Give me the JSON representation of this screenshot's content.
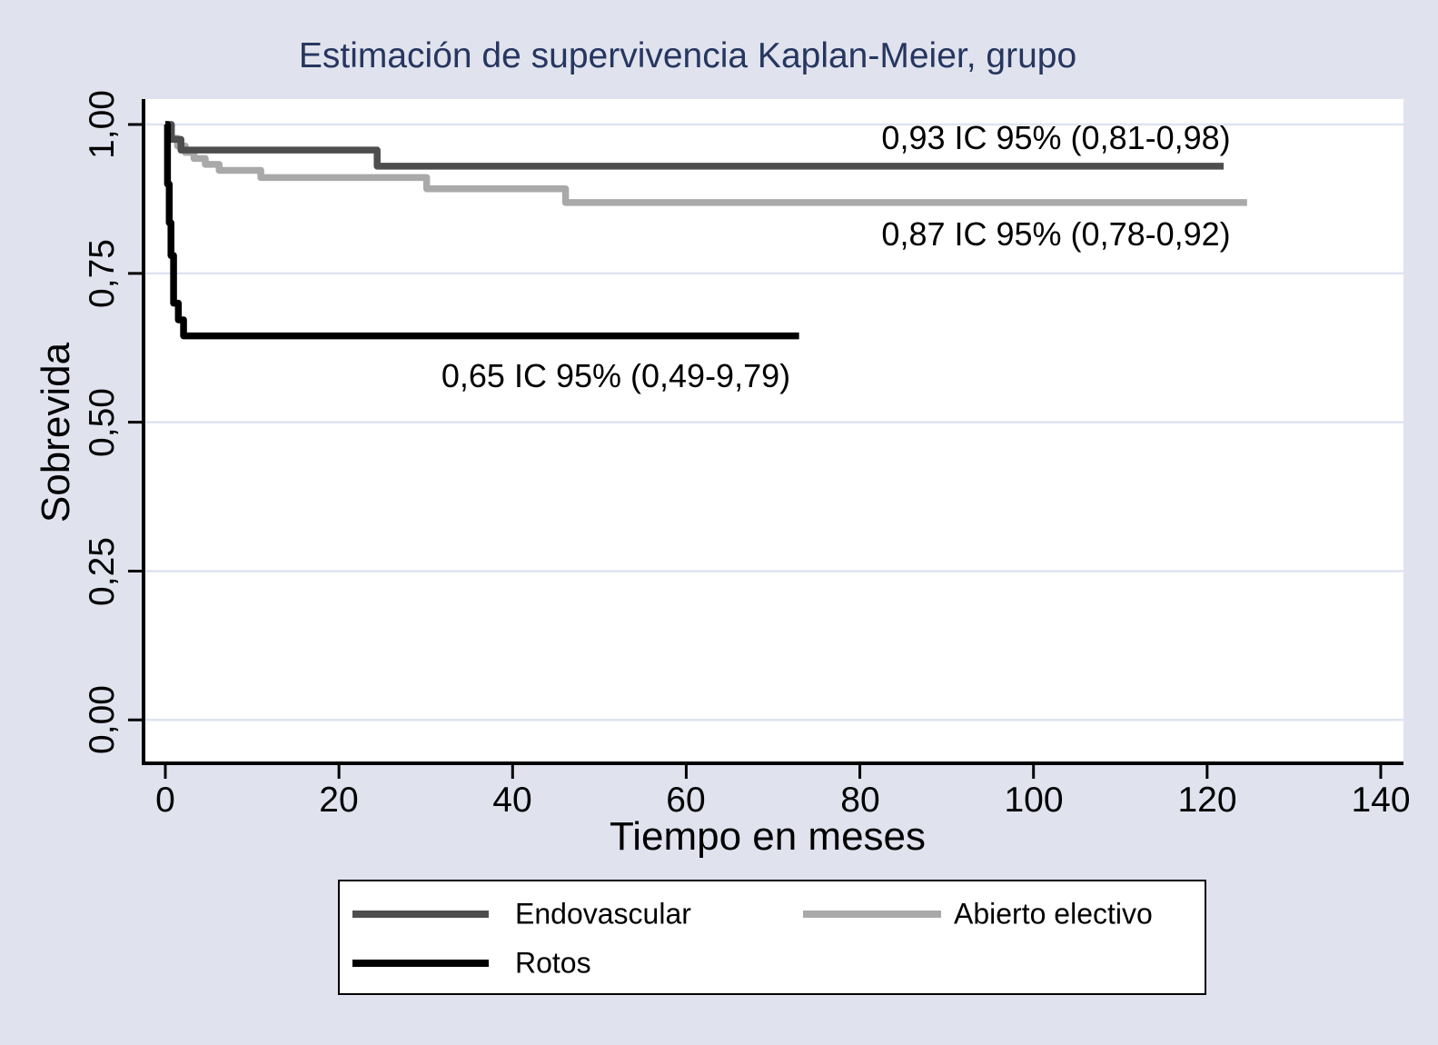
{
  "title": "Estimación de supervivencia Kaplan-Meier, grupo",
  "axes": {
    "y": {
      "label": "Sobrevida",
      "tick_labels": [
        "1,00",
        "0,75",
        "0,50",
        "0,25",
        "0,00"
      ]
    },
    "x": {
      "label": "Tiempo en meses",
      "tick_labels": [
        "0",
        "20",
        "40",
        "60",
        "80",
        "100",
        "120",
        "140"
      ]
    }
  },
  "legend": {
    "items": [
      {
        "label": "Endovascular",
        "color": "#4d4d4d"
      },
      {
        "label": "Abierto electivo",
        "color": "#a9a9a9"
      },
      {
        "label": "Rotos",
        "color": "#000000"
      }
    ]
  },
  "colors": {
    "background": "#e0e3ee",
    "plot_background": "#ffffff",
    "gridline": "#dfe3f0",
    "axis": "#000000",
    "title": "#26365f"
  },
  "chart_data": {
    "type": "line",
    "subtype": "kaplan-meier-step",
    "title": "Estimación de supervivencia Kaplan-Meier, grupo",
    "xlabel": "Tiempo en meses",
    "ylabel": "Sobrevida",
    "xlim": [
      -2.6,
      142.6
    ],
    "ylim": [
      -0.073,
      1.043
    ],
    "xticks": [
      0,
      20,
      40,
      60,
      80,
      100,
      120,
      140
    ],
    "yticks": [
      1.0,
      0.75,
      0.5,
      0.25,
      0.0
    ],
    "grid": true,
    "legend_position": "bottom",
    "series": [
      {
        "name": "Abierto electivo",
        "color": "#a9a9a9",
        "points": [
          [
            0,
            1.0
          ],
          [
            0.6,
            0.977
          ],
          [
            1.4,
            0.964
          ],
          [
            2.3,
            0.953
          ],
          [
            3.3,
            0.943
          ],
          [
            4.6,
            0.933
          ],
          [
            6.2,
            0.923
          ],
          [
            11.0,
            0.911
          ],
          [
            30.1,
            0.892
          ],
          [
            46.1,
            0.869
          ]
        ],
        "end_t": 124.6,
        "final_estimate": "0,87"
      },
      {
        "name": "Endovascular",
        "color": "#4d4d4d",
        "points": [
          [
            0,
            1.0
          ],
          [
            0.7,
            0.975
          ],
          [
            1.8,
            0.957
          ],
          [
            24.4,
            0.93
          ]
        ],
        "end_t": 121.9,
        "final_estimate": "0,93"
      },
      {
        "name": "Rotos",
        "color": "#000000",
        "points": [
          [
            0,
            1.0
          ],
          [
            0.25,
            0.9
          ],
          [
            0.45,
            0.835
          ],
          [
            0.65,
            0.78
          ],
          [
            0.95,
            0.7
          ],
          [
            1.5,
            0.672
          ],
          [
            2.1,
            0.645
          ]
        ],
        "end_t": 73.0,
        "final_estimate": "0,65"
      }
    ],
    "annotations": [
      {
        "text": "0,93 IC 95% (0,81-0,98)",
        "t": 102.6,
        "s": 0.977
      },
      {
        "text": "0,87 IC 95% (0,78-0,92)",
        "t": 102.6,
        "s": 0.815
      },
      {
        "text": "0,65 IC 95% (0,49-9,79)",
        "t": 51.9,
        "s": 0.578
      }
    ]
  }
}
